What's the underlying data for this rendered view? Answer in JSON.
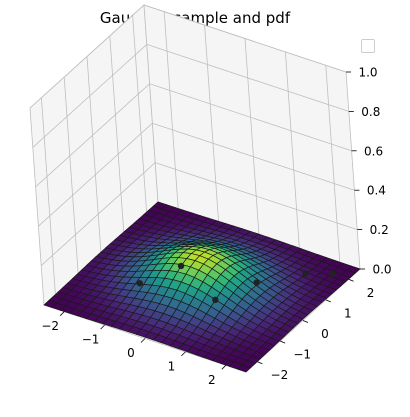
{
  "chart_data": {
    "type": "surface3d",
    "title": "Gaussian sample and pdf",
    "xlabel": "",
    "ylabel": "",
    "zlabel": "",
    "x_ticks": [
      "−2",
      "−1",
      "0",
      "1",
      "2"
    ],
    "y_ticks": [
      "−2",
      "−1",
      "0",
      "1",
      "2"
    ],
    "z_ticks": [
      "0.0",
      "0.2",
      "0.4",
      "0.6",
      "0.8",
      "1.0"
    ],
    "xlim": [
      -2.5,
      2.5
    ],
    "ylim": [
      -2.5,
      2.5
    ],
    "zlim": [
      0,
      1
    ],
    "grid": true,
    "colormap": "viridis",
    "surface": {
      "function": "bivariate standard normal pdf",
      "mean": [
        0,
        0
      ],
      "std": [
        1,
        1
      ],
      "grid_n": 25,
      "range": [
        -2.5,
        2.5
      ]
    },
    "sample_points": [
      {
        "x": 1.6,
        "y": 1.7
      },
      {
        "x": 2.1,
        "y": 2.0
      },
      {
        "x": -0.8,
        "y": 0.5
      },
      {
        "x": 0.5,
        "y": -0.3
      },
      {
        "x": -1.2,
        "y": -0.6
      },
      {
        "x": 0.9,
        "y": 0.8
      }
    ],
    "legend": {
      "placement": "top-right",
      "entries": []
    },
    "colors": {
      "pane_edge": "#bfbfbf",
      "surface_edge": "#1a1a1a",
      "points": "#222222"
    }
  }
}
